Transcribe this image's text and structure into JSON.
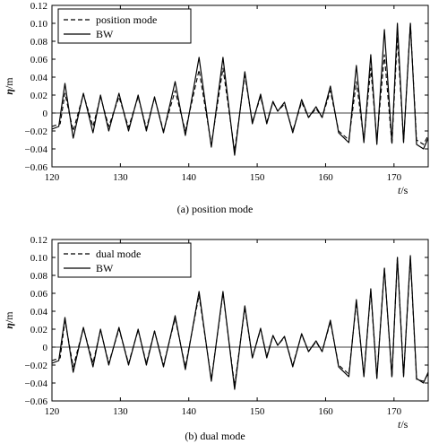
{
  "chart_data": [
    {
      "type": "line",
      "caption": "(a) position mode",
      "xlabel_var": "t",
      "xlabel_unit": "/s",
      "ylabel_var": "η",
      "ylabel_unit": "/m",
      "xlim": [
        120,
        175
      ],
      "ylim": [
        -0.06,
        0.12
      ],
      "xticks": [
        120,
        130,
        140,
        150,
        160,
        170
      ],
      "yticks": [
        -0.06,
        -0.04,
        -0.02,
        0,
        0.02,
        0.04,
        0.06,
        0.08,
        0.1,
        0.12
      ],
      "ytick_labels": [
        "−0.06",
        "−0.04",
        "−0.02",
        "0",
        "0.02",
        "0.04",
        "0.06",
        "0.08",
        "0.10",
        "0.12"
      ],
      "legend_position": "top-left",
      "series": [
        {
          "name": "position mode",
          "style": "dashed",
          "x": [
            120.0,
            121.2,
            121.9,
            123.1,
            124.6,
            126.0,
            127.1,
            128.3,
            129.8,
            131.2,
            132.6,
            133.8,
            135.0,
            136.3,
            138.0,
            139.5,
            141.5,
            143.3,
            145.0,
            146.7,
            148.2,
            149.3,
            150.5,
            151.4,
            152.3,
            153.0,
            154.0,
            155.2,
            156.5,
            157.5,
            158.6,
            159.5,
            160.7,
            161.9,
            163.4,
            164.5,
            165.6,
            166.6,
            167.5,
            168.6,
            169.7,
            170.5,
            171.4,
            172.4,
            173.3,
            174.3,
            175.0
          ],
          "y": [
            -0.015,
            -0.012,
            0.022,
            -0.02,
            0.021,
            -0.015,
            0.018,
            -0.015,
            0.018,
            -0.016,
            0.018,
            -0.017,
            0.017,
            -0.02,
            0.025,
            -0.02,
            0.048,
            -0.035,
            0.05,
            -0.042,
            0.042,
            -0.01,
            0.018,
            -0.01,
            0.012,
            0.002,
            0.01,
            -0.02,
            0.012,
            -0.005,
            0.005,
            -0.005,
            0.025,
            -0.02,
            -0.03,
            0.035,
            -0.03,
            0.05,
            -0.03,
            0.065,
            -0.035,
            0.085,
            -0.032,
            0.1,
            -0.03,
            -0.035,
            -0.025
          ]
        },
        {
          "name": "BW",
          "style": "solid",
          "x": [
            120.0,
            121.0,
            121.9,
            123.1,
            124.6,
            126.0,
            127.1,
            128.3,
            129.8,
            131.2,
            132.6,
            133.8,
            135.0,
            136.3,
            138.0,
            139.5,
            141.5,
            143.3,
            145.0,
            146.7,
            148.2,
            149.3,
            150.5,
            151.4,
            152.3,
            153.0,
            154.0,
            155.2,
            156.5,
            157.5,
            158.6,
            159.5,
            160.7,
            161.9,
            163.4,
            164.5,
            165.6,
            166.6,
            167.5,
            168.6,
            169.7,
            170.5,
            171.4,
            172.4,
            173.3,
            174.3,
            175.0
          ],
          "y": [
            -0.018,
            -0.015,
            0.033,
            -0.028,
            0.022,
            -0.022,
            0.02,
            -0.02,
            0.022,
            -0.02,
            0.02,
            -0.02,
            0.018,
            -0.022,
            0.035,
            -0.025,
            0.062,
            -0.038,
            0.062,
            -0.047,
            0.046,
            -0.012,
            0.021,
            -0.012,
            0.013,
            0.002,
            0.012,
            -0.022,
            0.015,
            -0.005,
            0.007,
            -0.005,
            0.03,
            -0.022,
            -0.033,
            0.053,
            -0.033,
            0.065,
            -0.035,
            0.093,
            -0.033,
            0.1,
            -0.033,
            0.1,
            -0.035,
            -0.04,
            -0.028
          ]
        }
      ]
    },
    {
      "type": "line",
      "caption": "(b) dual mode",
      "xlabel_var": "t",
      "xlabel_unit": "/s",
      "ylabel_var": "η",
      "ylabel_unit": "/m",
      "xlim": [
        120,
        175
      ],
      "ylim": [
        -0.06,
        0.12
      ],
      "xticks": [
        120,
        130,
        140,
        150,
        160,
        170
      ],
      "yticks": [
        -0.06,
        -0.04,
        -0.02,
        0,
        0.02,
        0.04,
        0.06,
        0.08,
        0.1,
        0.12
      ],
      "ytick_labels": [
        "−0.06",
        "−0.04",
        "−0.02",
        "0",
        "0.02",
        "0.04",
        "0.06",
        "0.08",
        "0.10",
        "0.12"
      ],
      "legend_position": "top-left",
      "series": [
        {
          "name": "dual mode",
          "style": "dashed",
          "x": [
            120.0,
            121.2,
            121.9,
            123.1,
            124.6,
            126.0,
            127.1,
            128.3,
            129.8,
            131.2,
            132.6,
            133.8,
            135.0,
            136.3,
            138.0,
            139.5,
            141.5,
            143.3,
            145.0,
            146.7,
            148.2,
            149.3,
            150.5,
            151.4,
            152.3,
            153.0,
            154.0,
            155.2,
            156.5,
            157.5,
            158.6,
            159.5,
            160.7,
            161.9,
            163.4,
            164.5,
            165.6,
            166.6,
            167.5,
            168.6,
            169.7,
            170.5,
            171.4,
            172.4,
            173.3,
            174.3,
            175.0
          ],
          "y": [
            -0.015,
            -0.012,
            0.03,
            -0.022,
            0.021,
            -0.018,
            0.019,
            -0.018,
            0.02,
            -0.018,
            0.019,
            -0.018,
            0.018,
            -0.02,
            0.032,
            -0.022,
            0.058,
            -0.036,
            0.06,
            -0.043,
            0.044,
            -0.012,
            0.02,
            -0.01,
            0.013,
            0.002,
            0.011,
            -0.02,
            0.014,
            -0.005,
            0.006,
            -0.005,
            0.028,
            -0.02,
            -0.03,
            0.05,
            -0.032,
            0.063,
            -0.034,
            0.088,
            -0.034,
            0.1,
            -0.032,
            0.1,
            -0.036,
            -0.038,
            -0.03
          ]
        },
        {
          "name": "BW",
          "style": "solid",
          "x": [
            120.0,
            121.0,
            121.9,
            123.1,
            124.6,
            126.0,
            127.1,
            128.3,
            129.8,
            131.2,
            132.6,
            133.8,
            135.0,
            136.3,
            138.0,
            139.5,
            141.5,
            143.3,
            145.0,
            146.7,
            148.2,
            149.3,
            150.5,
            151.4,
            152.3,
            153.0,
            154.0,
            155.2,
            156.5,
            157.5,
            158.6,
            159.5,
            160.7,
            161.9,
            163.4,
            164.5,
            165.6,
            166.6,
            167.5,
            168.6,
            169.7,
            170.5,
            171.4,
            172.4,
            173.3,
            174.3,
            175.0
          ],
          "y": [
            -0.018,
            -0.015,
            0.033,
            -0.028,
            0.022,
            -0.022,
            0.02,
            -0.02,
            0.022,
            -0.02,
            0.02,
            -0.02,
            0.018,
            -0.022,
            0.035,
            -0.025,
            0.062,
            -0.038,
            0.062,
            -0.047,
            0.046,
            -0.012,
            0.021,
            -0.012,
            0.013,
            0.002,
            0.012,
            -0.022,
            0.015,
            -0.005,
            0.007,
            -0.005,
            0.03,
            -0.022,
            -0.033,
            0.053,
            -0.033,
            0.065,
            -0.035,
            0.088,
            -0.033,
            0.1,
            -0.033,
            0.102,
            -0.035,
            -0.04,
            -0.028
          ]
        }
      ]
    }
  ]
}
